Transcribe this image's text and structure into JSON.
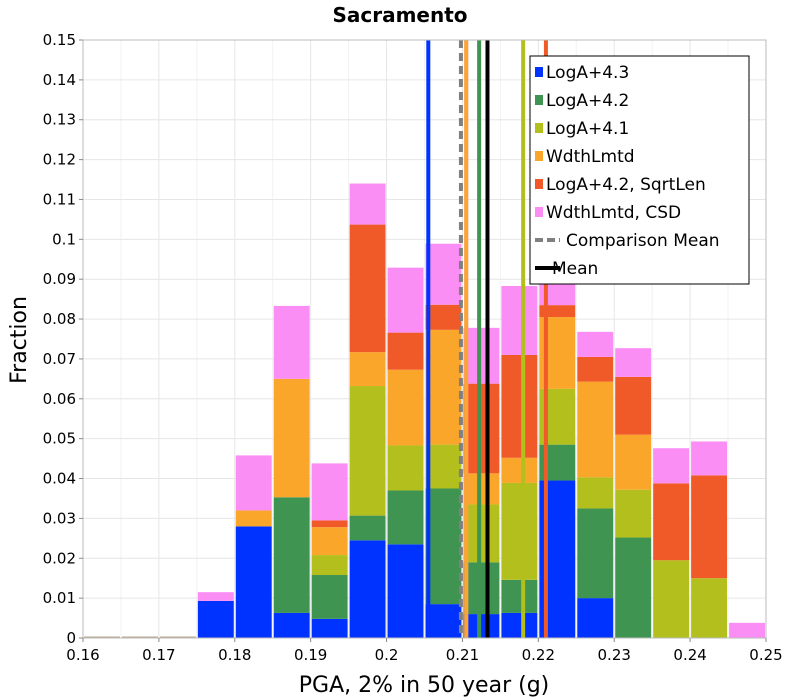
{
  "chart_data": {
    "type": "bar",
    "stacked": true,
    "title": "Sacramento",
    "xlabel": "PGA, 2% in 50 year (g)",
    "ylabel": "Fraction",
    "xlim": [
      0.16,
      0.25
    ],
    "ylim": [
      0,
      0.15
    ],
    "xticks": [
      "0.16",
      "0.17",
      "0.18",
      "0.19",
      "0.2",
      "0.21",
      "0.22",
      "0.23",
      "0.24",
      "0.25"
    ],
    "yticks": [
      "0",
      "0.01",
      "0.02",
      "0.03",
      "0.04",
      "0.05",
      "0.06",
      "0.07",
      "0.08",
      "0.09",
      "0.1",
      "0.11",
      "0.12",
      "0.13",
      "0.14",
      "0.15"
    ],
    "bin_width": 0.005,
    "bin_centers": [
      0.1625,
      0.1675,
      0.1725,
      0.1775,
      0.1825,
      0.1875,
      0.1925,
      0.1975,
      0.2025,
      0.2075,
      0.2125,
      0.2175,
      0.2225,
      0.2275,
      0.2325,
      0.2375,
      0.2425,
      0.2475
    ],
    "grid": true,
    "legend_position": "top-right",
    "legend": [
      "LogA+4.3",
      "LogA+4.2",
      "LogA+4.1",
      "WdthLmtd",
      "LogA+4.2, SqrtLen",
      "WdthLmtd, CSD",
      "Comparison Mean",
      "Mean"
    ],
    "series": [
      {
        "name": "LogA+4.3",
        "color": "#0033ff",
        "values": [
          0,
          0,
          0,
          0.0093,
          0.028,
          0.0063,
          0.0048,
          0.0245,
          0.0235,
          0.0085,
          0.006,
          0.0063,
          0.0395,
          0.01,
          0,
          0,
          0,
          0
        ]
      },
      {
        "name": "LogA+4.2",
        "color": "#3f9452",
        "values": [
          0,
          0,
          0,
          0,
          0,
          0.029,
          0.011,
          0.0062,
          0.0135,
          0.029,
          0.013,
          0.0083,
          0.009,
          0.0225,
          0.0252,
          0,
          0,
          0
        ]
      },
      {
        "name": "LogA+4.1",
        "color": "#b2bf1c",
        "values": [
          0,
          0,
          0,
          0,
          0,
          0,
          0.005,
          0.0325,
          0.0113,
          0.011,
          0.0145,
          0.0243,
          0.014,
          0.0078,
          0.012,
          0.0195,
          0.015,
          0
        ]
      },
      {
        "name": "WdthLmtd",
        "color": "#f9a62a",
        "values": [
          0,
          0,
          0,
          0,
          0.004,
          0.0297,
          0.007,
          0.0085,
          0.019,
          0.0288,
          0.0078,
          0.0063,
          0.018,
          0.024,
          0.0138,
          0,
          0,
          0
        ]
      },
      {
        "name": "LogA+4.2, SqrtLen",
        "color": "#f05a28",
        "values": [
          0,
          0,
          0,
          0,
          0,
          0,
          0.0017,
          0.032,
          0.0093,
          0.0063,
          0.0225,
          0.0258,
          0.003,
          0.0062,
          0.0145,
          0.0193,
          0.0258,
          0
        ]
      },
      {
        "name": "WdthLmtd, CSD",
        "color": "#fb8ef5",
        "values": [
          0,
          0,
          0,
          0.0022,
          0.0138,
          0.0183,
          0.0143,
          0.0103,
          0.0163,
          0.0153,
          0.014,
          0.0173,
          0.011,
          0.0063,
          0.0072,
          0.0088,
          0.0085,
          0.0038
        ]
      }
    ],
    "vertical_lines": [
      {
        "name": "LogA+4.3",
        "x": 0.2055,
        "color": "#0033ff",
        "style": "solid"
      },
      {
        "name": "WdthLmtd, CSD",
        "x": 0.2105,
        "color": "#fb8ef5",
        "style": "solid"
      },
      {
        "name": "WdthLmtd",
        "x": 0.2105,
        "color": "#f9a62a",
        "style": "solid"
      },
      {
        "name": "LogA+4.2",
        "x": 0.2122,
        "color": "#3f9452",
        "style": "solid"
      },
      {
        "name": "LogA+4.1",
        "x": 0.218,
        "color": "#b2bf1c",
        "style": "solid"
      },
      {
        "name": "LogA+4.2, SqrtLen",
        "x": 0.221,
        "color": "#f05a28",
        "style": "solid"
      },
      {
        "name": "Comparison Mean",
        "x": 0.2098,
        "color": "#808080",
        "style": "dashed"
      },
      {
        "name": "Mean",
        "x": 0.2133,
        "color": "#000000",
        "style": "solid"
      }
    ]
  }
}
